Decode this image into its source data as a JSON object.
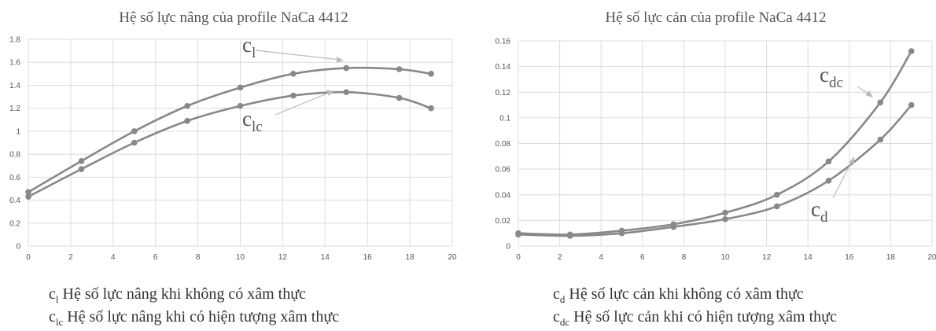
{
  "chart_data": [
    {
      "type": "line",
      "title": "Hệ số lực nâng của profile NaCa 4412",
      "xlabel": "",
      "ylabel": "",
      "xlim": [
        0,
        20
      ],
      "ylim": [
        0,
        1.8
      ],
      "xticks": [
        "0",
        "2",
        "4",
        "6",
        "8",
        "10",
        "12",
        "14",
        "16",
        "18",
        "20"
      ],
      "yticks": [
        "0",
        "0.2",
        "0.4",
        "0.6",
        "0.8",
        "1",
        "1.2",
        "1.4",
        "1.6",
        "1.8"
      ],
      "grid": true,
      "series": [
        {
          "name": "cl",
          "x": [
            0,
            2.5,
            5,
            7.5,
            10,
            12.5,
            15,
            17.5,
            19
          ],
          "y": [
            0.47,
            0.74,
            1.0,
            1.22,
            1.38,
            1.5,
            1.55,
            1.54,
            1.5
          ]
        },
        {
          "name": "clc",
          "x": [
            0,
            2.5,
            5,
            7.5,
            10,
            12.5,
            15,
            17.5,
            19
          ],
          "y": [
            0.43,
            0.67,
            0.9,
            1.09,
            1.22,
            1.31,
            1.34,
            1.29,
            1.2
          ]
        }
      ],
      "annotations": [
        {
          "main": "c",
          "sub": "l"
        },
        {
          "main": "c",
          "sub": "lc"
        }
      ],
      "legend": [
        {
          "sym": "c",
          "sub": "l",
          "text": " Hệ số lực nâng khi không có xâm thực"
        },
        {
          "sym": "c",
          "sub": "lc",
          "text": " Hệ số lực nâng khi có hiện tượng xâm thực"
        }
      ],
      "colors": {
        "series": "#888888",
        "grid": "#dcdcdc"
      }
    },
    {
      "type": "line",
      "title": "Hệ số lực cản của profile NaCa  4412",
      "xlabel": "",
      "ylabel": "",
      "xlim": [
        0,
        20
      ],
      "ylim": [
        0,
        0.16
      ],
      "xticks": [
        "0",
        "2",
        "4",
        "6",
        "8",
        "10",
        "12",
        "14",
        "16",
        "18",
        "20"
      ],
      "yticks": [
        "0",
        "0.02",
        "0.04",
        "0.06",
        "0.08",
        "0.1",
        "0.12",
        "0.14",
        "0.16"
      ],
      "grid": true,
      "series": [
        {
          "name": "cdc",
          "x": [
            0,
            2.5,
            5,
            7.5,
            10,
            12.5,
            15,
            17.5,
            19
          ],
          "y": [
            0.01,
            0.009,
            0.012,
            0.017,
            0.026,
            0.04,
            0.066,
            0.112,
            0.152
          ]
        },
        {
          "name": "cd",
          "x": [
            0,
            2.5,
            5,
            7.5,
            10,
            12.5,
            15,
            17.5,
            19
          ],
          "y": [
            0.009,
            0.008,
            0.01,
            0.015,
            0.021,
            0.031,
            0.051,
            0.083,
            0.11
          ]
        }
      ],
      "annotations": [
        {
          "main": "c",
          "sub": "dc"
        },
        {
          "main": "c",
          "sub": "d"
        }
      ],
      "legend": [
        {
          "sym": "c",
          "sub": "d",
          "text": " Hệ số lực cản khi không có xâm thực"
        },
        {
          "sym": "c",
          "sub": "dc",
          "text": " Hệ số lực cản khi có hiện tượng xâm thực"
        }
      ],
      "colors": {
        "series": "#888888",
        "grid": "#dcdcdc"
      }
    }
  ]
}
